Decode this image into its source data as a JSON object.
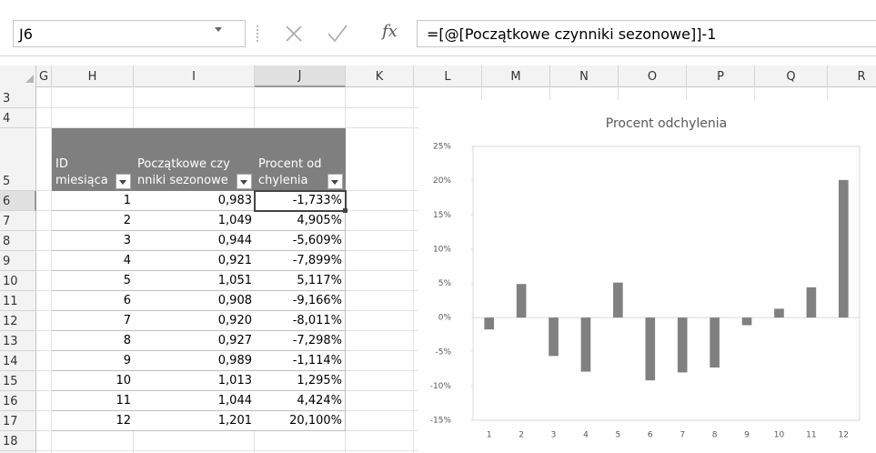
{
  "name_box": "J6",
  "function_button": "fx",
  "formula": "=[@[Początkowe czynniki sezonowe]]-1",
  "columns": [
    "G",
    "H",
    "I",
    "J",
    "K",
    "L",
    "M",
    "N",
    "O",
    "P",
    "Q",
    "R"
  ],
  "rows": [
    "3",
    "4",
    "5",
    "6",
    "7",
    "8",
    "9",
    "10",
    "11",
    "12",
    "13",
    "14",
    "15",
    "16",
    "17",
    "18"
  ],
  "table": {
    "headers": [
      "ID miesiąca",
      "Początkowe czynniki sezonowe",
      "Procent odchylenia"
    ],
    "rows": [
      [
        "1",
        "0,983",
        "-1,733%"
      ],
      [
        "2",
        "1,049",
        "4,905%"
      ],
      [
        "3",
        "0,944",
        "-5,609%"
      ],
      [
        "4",
        "0,921",
        "-7,899%"
      ],
      [
        "5",
        "1,051",
        "5,117%"
      ],
      [
        "6",
        "0,908",
        "-9,166%"
      ],
      [
        "7",
        "0,920",
        "-8,011%"
      ],
      [
        "8",
        "0,927",
        "-7,298%"
      ],
      [
        "9",
        "0,989",
        "-1,114%"
      ],
      [
        "10",
        "1,013",
        "1,295%"
      ],
      [
        "11",
        "1,044",
        "4,424%"
      ],
      [
        "12",
        "1,201",
        "20,100%"
      ]
    ]
  },
  "chart_data": {
    "type": "bar",
    "title": "Procent odchylenia",
    "categories": [
      "1",
      "2",
      "3",
      "4",
      "5",
      "6",
      "7",
      "8",
      "9",
      "10",
      "11",
      "12"
    ],
    "values": [
      -1.733,
      4.905,
      -5.609,
      -7.899,
      5.117,
      -9.166,
      -8.011,
      -7.298,
      -1.114,
      1.295,
      4.424,
      20.1
    ],
    "color": "#808080",
    "ylim": [
      -15,
      25
    ],
    "yticks": [
      {
        "value": -15,
        "label": "-15%"
      },
      {
        "value": -10,
        "label": "-10%"
      },
      {
        "value": -5,
        "label": "-5%"
      },
      {
        "value": 0,
        "label": "0%"
      },
      {
        "value": 5,
        "label": "5%"
      },
      {
        "value": 10,
        "label": "10%"
      },
      {
        "value": 15,
        "label": "15%"
      },
      {
        "value": 20,
        "label": "20%"
      },
      {
        "value": 25,
        "label": "25%"
      }
    ]
  }
}
